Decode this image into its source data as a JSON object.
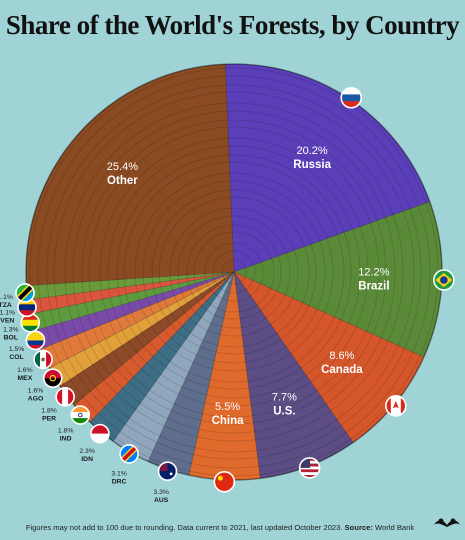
{
  "title": "Share of the World's Forests, by Country",
  "footnote": {
    "text": "Figures may not add to 100 due to rounding. Data current to 2021, last updated October 2023.",
    "source_label": "Source:",
    "source_value": "World Bank"
  },
  "chart_data": {
    "type": "pie",
    "title": "Share of the World's Forests, by Country",
    "unit": "%",
    "slices": [
      {
        "label": "Russia",
        "value": 20.2,
        "value_label": "20.2%",
        "color": "#5b3fb8",
        "flag": "russia-flag-icon"
      },
      {
        "label": "Brazil",
        "value": 12.2,
        "value_label": "12.2%",
        "color": "#5a8a38",
        "flag": "brazil-flag-icon"
      },
      {
        "label": "Canada",
        "value": 8.6,
        "value_label": "8.6%",
        "color": "#d4562a",
        "flag": "canada-flag-icon"
      },
      {
        "label": "U.S.",
        "value": 7.7,
        "value_label": "7.7%",
        "color": "#5c4d84",
        "flag": "usa-flag-icon"
      },
      {
        "label": "China",
        "value": 5.5,
        "value_label": "5.5%",
        "color": "#e06a2c",
        "flag": "china-flag-icon"
      },
      {
        "label": "AUS",
        "value": 3.3,
        "value_label": "3.3%",
        "color": "#5f6e8c",
        "flag": "australia-flag-icon"
      },
      {
        "label": "DRC",
        "value": 3.1,
        "value_label": "3.1%",
        "color": "#8fa6bc",
        "flag": "drc-flag-icon"
      },
      {
        "label": "IDN",
        "value": 2.3,
        "value_label": "2.3%",
        "color": "#3d6e86",
        "flag": "indonesia-flag-icon"
      },
      {
        "label": "IND",
        "value": 1.8,
        "value_label": "1.8%",
        "color": "#d65a2e",
        "flag": "india-flag-icon"
      },
      {
        "label": "PER",
        "value": 1.8,
        "value_label": "1.8%",
        "color": "#8d4a28",
        "flag": "peru-flag-icon"
      },
      {
        "label": "AGO",
        "value": 1.6,
        "value_label": "1.6%",
        "color": "#e2a03a",
        "flag": "angola-flag-icon"
      },
      {
        "label": "MEX",
        "value": 1.6,
        "value_label": "1.6%",
        "color": "#e07a3a",
        "flag": "mexico-flag-icon"
      },
      {
        "label": "COL",
        "value": 1.5,
        "value_label": "1.5%",
        "color": "#7a4aa8",
        "flag": "colombia-flag-icon"
      },
      {
        "label": "BOL",
        "value": 1.3,
        "value_label": "1.3%",
        "color": "#5e9a3e",
        "flag": "bolivia-flag-icon"
      },
      {
        "label": "VEN",
        "value": 1.1,
        "value_label": "1.1%",
        "color": "#d9553e",
        "flag": "venezuela-flag-icon"
      },
      {
        "label": "TZA",
        "value": 1.1,
        "value_label": "1.1%",
        "color": "#6a9a3a",
        "flag": "tanzania-flag-icon"
      },
      {
        "label": "Other",
        "value": 25.4,
        "value_label": "25.4%",
        "color": "#8a4a22"
      }
    ]
  }
}
